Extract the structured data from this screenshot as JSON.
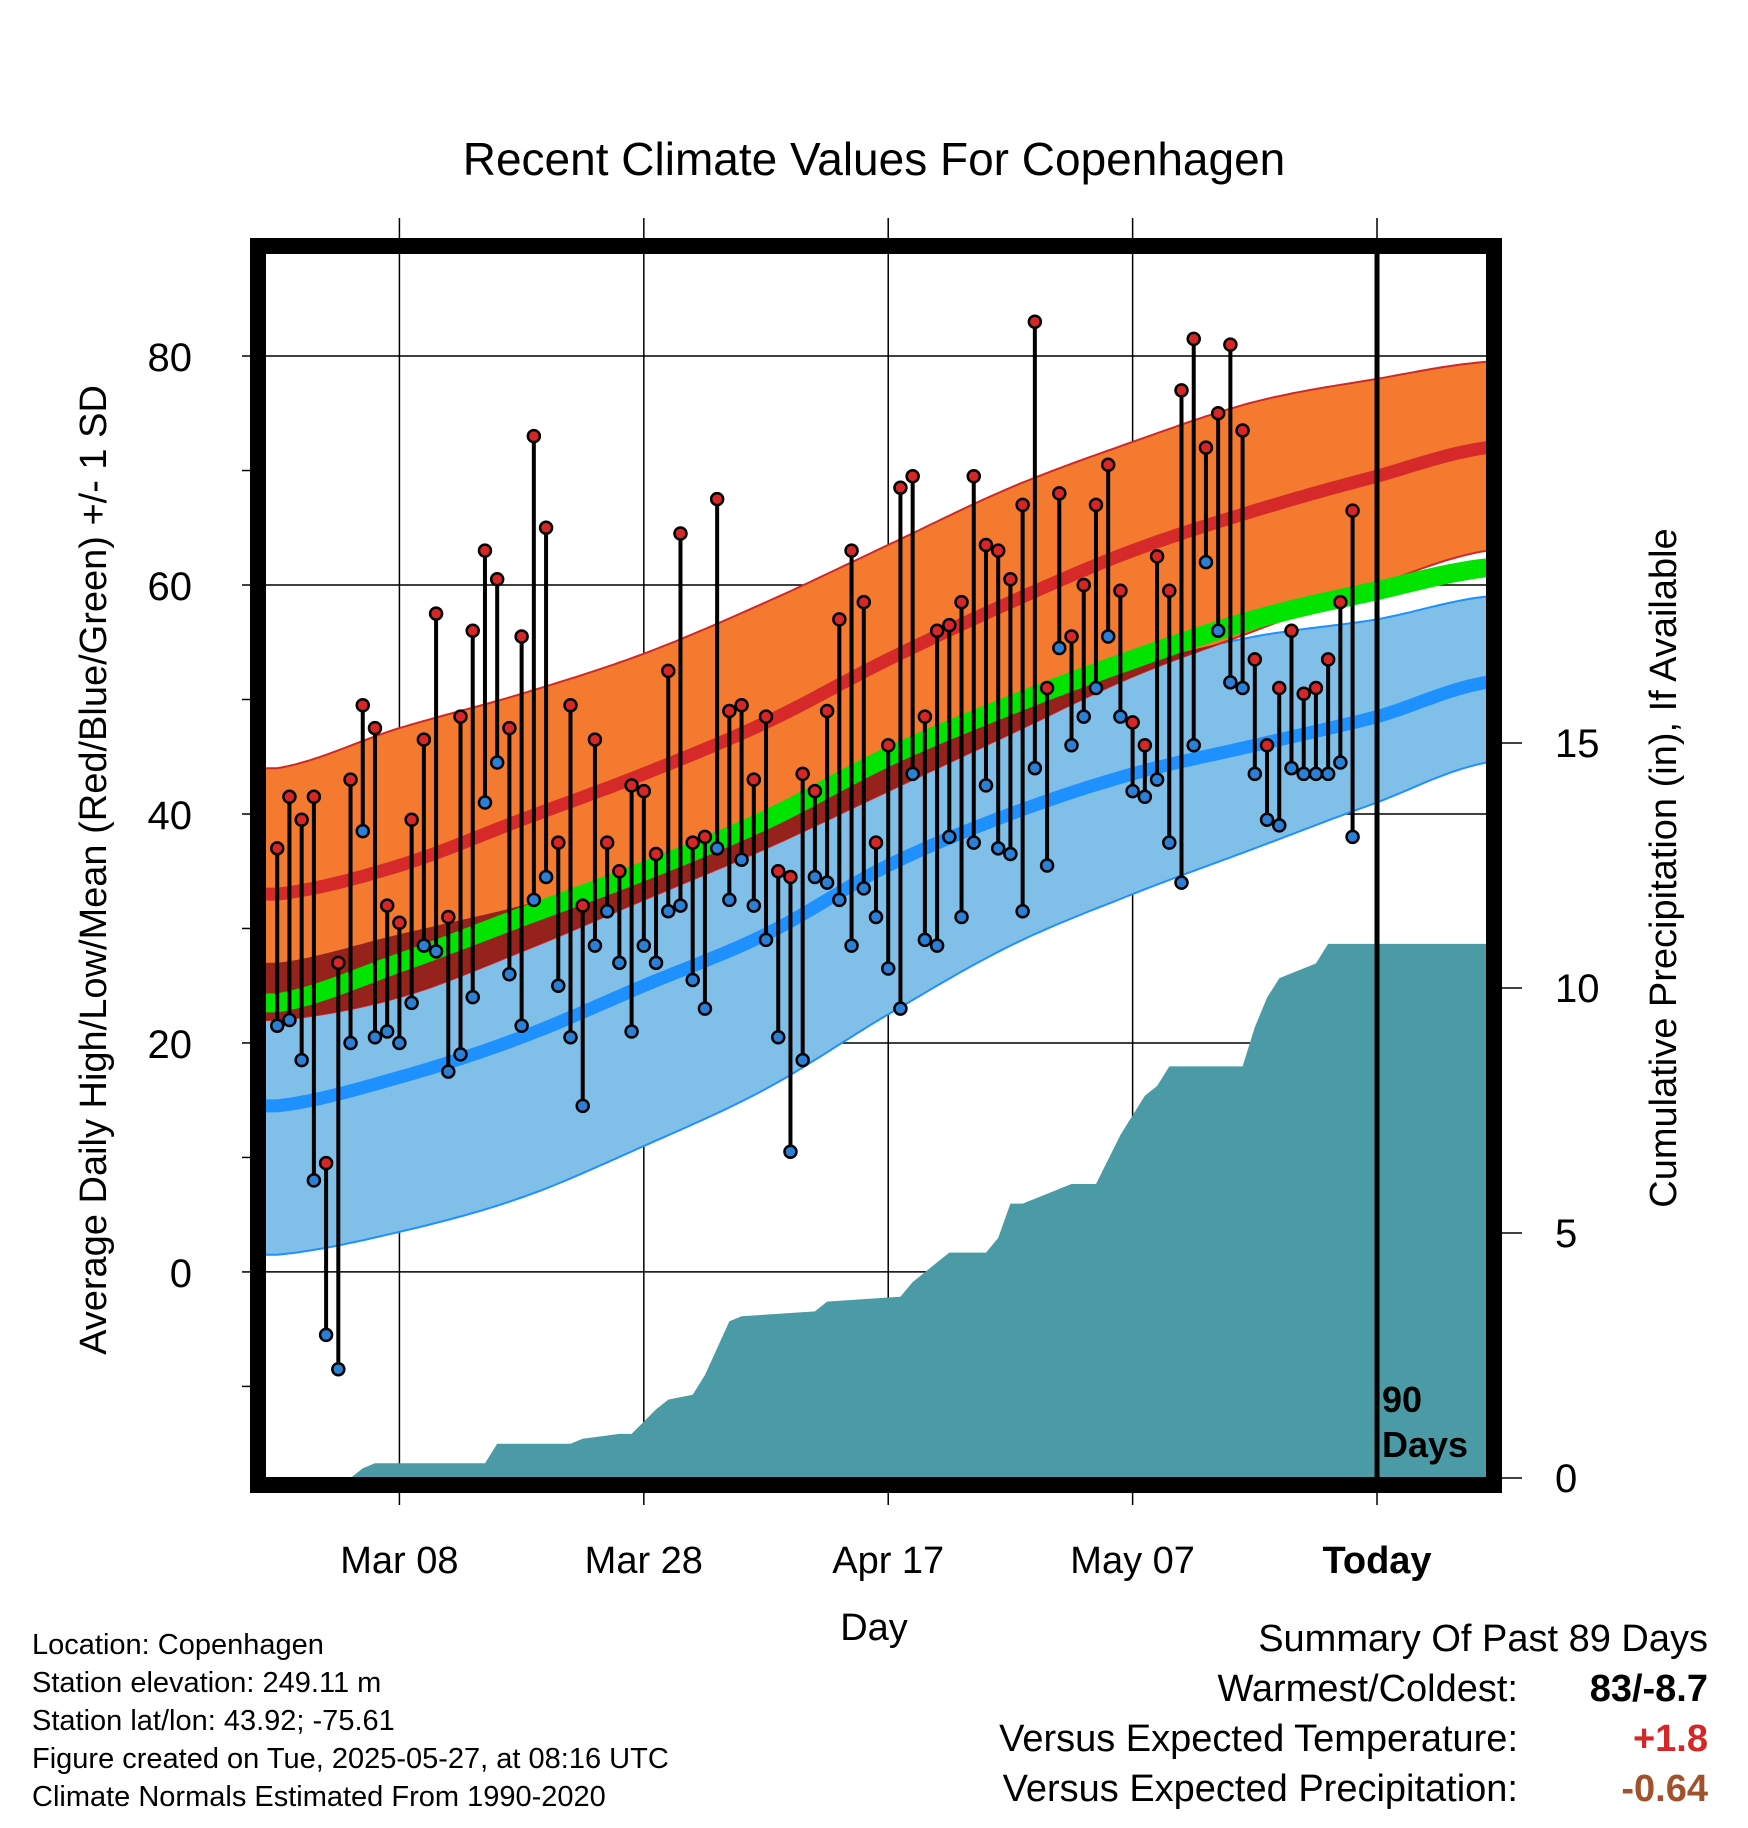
{
  "chart_data": {
    "type": "range-bar",
    "title": "Recent Climate Values For Copenhagen",
    "xlabel": "Day",
    "ylabel_left": "Average Daily High/Low/Mean (Red/Blue/Green) +/- 1 SD",
    "ylabel_right": "Cumulative Precipitation (in), If Available",
    "x_tick_labels": [
      "Mar 08",
      "Mar 28",
      "Apr 17",
      "May 07",
      "Today"
    ],
    "x_tick_days": [
      10,
      30,
      50,
      70,
      90
    ],
    "x_range_days": [
      -1,
      99
    ],
    "today_day": 90,
    "today_annotation": [
      "90",
      "Days"
    ],
    "y_left_ticks": [
      0,
      20,
      40,
      60,
      80
    ],
    "y_left_range": [
      -18,
      89
    ],
    "y_right_ticks": [
      0,
      5,
      10,
      15
    ],
    "y_right_range": [
      0,
      25
    ],
    "normals": {
      "knots_day": [
        0,
        10,
        20,
        30,
        40,
        50,
        60,
        70,
        80,
        90,
        99
      ],
      "high_mean": [
        33,
        35.5,
        39.5,
        43.5,
        48,
        53.5,
        58.5,
        63,
        66.5,
        69.5,
        72
      ],
      "high_upper": [
        44,
        47.5,
        50.5,
        54,
        58.5,
        63.5,
        68.5,
        72.5,
        76,
        78,
        79.5
      ],
      "high_lower": [
        22,
        24,
        28,
        32.5,
        37,
        42,
        47,
        52,
        56,
        60,
        63
      ],
      "mean_mean": [
        23.5,
        27,
        31,
        35,
        39.5,
        45,
        49.5,
        53.5,
        57,
        59.5,
        61.5
      ],
      "low_mean": [
        14.5,
        17,
        20.5,
        25,
        29.5,
        35.5,
        40,
        43.5,
        46,
        48.5,
        51.5
      ],
      "low_upper": [
        27,
        29.5,
        32,
        35,
        39.5,
        45,
        49.5,
        53,
        55.5,
        57,
        59
      ],
      "low_lower": [
        1.5,
        3.5,
        6.5,
        11,
        16,
        22.5,
        28.5,
        33,
        37,
        41,
        44.5
      ]
    },
    "series": [
      {
        "name": "High",
        "values": [
          37,
          41.5,
          39.5,
          41.5,
          9.5,
          27,
          43,
          49.5,
          47.5,
          32,
          30.5,
          39.5,
          46.5,
          57.5,
          31,
          48.5,
          56,
          63,
          60.5,
          47.5,
          55.5,
          73,
          65,
          37.5,
          49.5,
          32,
          46.5,
          37.5,
          35,
          42.5,
          42,
          36.5,
          52.5,
          64.5,
          37.5,
          38,
          67.5,
          49,
          49.5,
          43,
          48.5,
          35,
          34.5,
          43.5,
          42,
          49,
          57,
          63,
          58.5,
          37.5,
          46,
          68.5,
          69.5,
          48.5,
          56,
          56.5,
          58.5,
          69.5,
          63.5,
          63,
          60.5,
          67,
          83,
          51,
          68,
          55.5,
          60,
          67,
          70.5,
          59.5,
          48,
          46,
          62.5,
          59.5,
          77,
          81.5,
          72,
          75,
          81,
          73.5,
          53.5,
          46,
          51,
          56,
          50.5,
          51,
          53.5,
          58.5,
          66.5
        ]
      },
      {
        "name": "Low",
        "values": [
          21.5,
          22,
          18.5,
          8,
          -5.5,
          -8.5,
          20,
          38.5,
          20.5,
          21,
          20,
          23.5,
          28.5,
          28,
          17.5,
          19,
          24,
          41,
          44.5,
          26,
          21.5,
          32.5,
          34.5,
          25,
          20.5,
          14.5,
          28.5,
          31.5,
          27,
          21,
          28.5,
          27,
          31.5,
          32,
          25.5,
          23,
          37,
          32.5,
          36,
          32,
          29,
          20.5,
          10.5,
          18.5,
          34.5,
          34,
          32.5,
          28.5,
          33.5,
          31,
          26.5,
          23,
          43.5,
          29,
          28.5,
          38,
          31,
          37.5,
          42.5,
          37,
          36.5,
          31.5,
          44,
          35.5,
          54.5,
          46,
          48.5,
          51,
          55.5,
          48.5,
          42,
          41.5,
          43,
          37.5,
          34,
          46,
          62,
          56,
          51.5,
          51,
          43.5,
          39.5,
          39,
          44,
          43.5,
          43.5,
          43.5,
          44.5,
          38
        ]
      },
      {
        "name": "Cumulative Precipitation",
        "days": [
          0,
          6,
          7,
          8,
          9,
          10,
          17,
          18,
          24,
          25,
          28,
          29,
          31,
          32,
          34,
          35,
          37,
          38,
          44,
          45,
          51,
          52,
          53,
          54,
          55,
          58,
          59,
          60,
          61,
          62,
          64,
          65,
          67,
          68,
          69,
          70,
          71,
          72,
          73,
          75,
          79,
          80,
          81,
          82,
          83,
          85,
          86,
          87,
          88,
          89,
          99
        ],
        "values": [
          0,
          0,
          0.2,
          0.3,
          0.3,
          0.3,
          0.3,
          0.7,
          0.7,
          0.8,
          0.9,
          0.9,
          1.4,
          1.6,
          1.7,
          2.1,
          3.2,
          3.3,
          3.4,
          3.6,
          3.7,
          4.0,
          4.2,
          4.4,
          4.6,
          4.6,
          4.9,
          5.6,
          5.6,
          5.7,
          5.9,
          6.0,
          6.0,
          6.5,
          7.0,
          7.4,
          7.8,
          8.0,
          8.4,
          8.4,
          8.4,
          9.2,
          9.8,
          10.2,
          10.3,
          10.5,
          10.9,
          10.9,
          10.9,
          10.9,
          10.9
        ]
      }
    ]
  },
  "footer": {
    "location": "Location: Copenhagen",
    "elevation": "Station elevation: 249.11 m",
    "latlon": "Station lat/lon: 43.92; -75.61",
    "created": "Figure created on Tue, 2025-05-27, at 08:16 UTC",
    "normals": "Climate Normals Estimated From 1990-2020"
  },
  "summary": {
    "heading": "Summary Of Past 89 Days",
    "warmest_coldest_label": "Warmest/Coldest:",
    "warmest_coldest_value": "83/-8.7",
    "temp_label": "Versus Expected Temperature:",
    "temp_value": "+1.8",
    "temp_color": "#d62728",
    "precip_label": "Versus Expected Precipitation:",
    "precip_value": "-0.64",
    "precip_color": "#a0522d"
  },
  "colors": {
    "high_band": "#f47a30",
    "high_line": "#d62a2a",
    "mean_band": "#00e400",
    "low_band": "#80c0e8",
    "low_line": "#1e90ff",
    "overlap": "#8b1a1a",
    "precip": "#4a9ba5",
    "high_dot": "#d62728",
    "low_dot": "#2b7fd4"
  }
}
